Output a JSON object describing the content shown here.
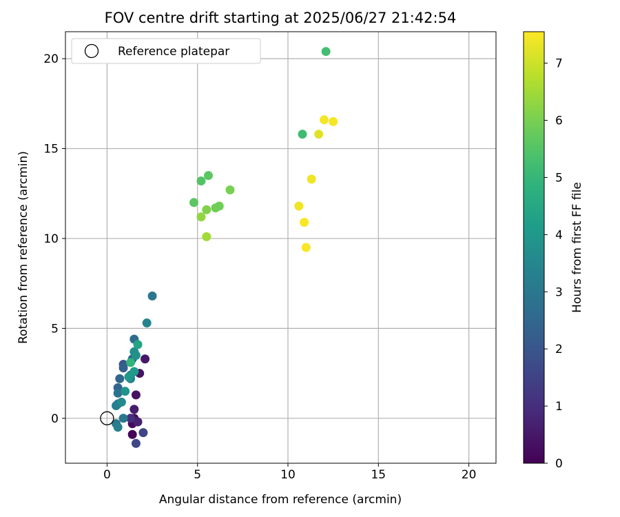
{
  "chart_data": {
    "type": "scatter",
    "title": "FOV centre drift starting at 2025/06/27 21:42:54",
    "xlabel": "Angular distance from reference (arcmin)",
    "ylabel": "Rotation from reference (arcmin)",
    "xlim": [
      -2.3,
      21.5
    ],
    "ylim": [
      -2.5,
      21.5
    ],
    "xticks": [
      0,
      5,
      10,
      15,
      20
    ],
    "yticks": [
      0,
      5,
      10,
      15,
      20
    ],
    "grid": true,
    "legend": {
      "placement": "upper-left",
      "entries": [
        "Reference platepar"
      ]
    },
    "reference": {
      "x": 0,
      "y": 0,
      "marker": "open-circle",
      "label": "Reference platepar"
    },
    "colorbar": {
      "label": "Hours from first FF file",
      "colormap": "viridis",
      "range": [
        0,
        7.55
      ],
      "ticks": [
        0,
        1,
        2,
        3,
        4,
        5,
        6,
        7
      ]
    },
    "series": [
      {
        "points": [
          {
            "x": 1.4,
            "y": -0.9,
            "hours": 0.1
          },
          {
            "x": 1.4,
            "y": -0.3,
            "hours": 0.2
          },
          {
            "x": 1.5,
            "y": 0.0,
            "hours": 0.3
          },
          {
            "x": 1.6,
            "y": 1.3,
            "hours": 0.35
          },
          {
            "x": 1.8,
            "y": 2.5,
            "hours": 0.4
          },
          {
            "x": 2.1,
            "y": 3.3,
            "hours": 0.5
          },
          {
            "x": 1.5,
            "y": 0.5,
            "hours": 0.6
          },
          {
            "x": 1.7,
            "y": -0.2,
            "hours": 0.7
          },
          {
            "x": 1.3,
            "y": 0.0,
            "hours": 1.0
          },
          {
            "x": 2.0,
            "y": -0.8,
            "hours": 1.5
          },
          {
            "x": 1.6,
            "y": -1.4,
            "hours": 1.6
          },
          {
            "x": 0.9,
            "y": 3.0,
            "hours": 2.0
          },
          {
            "x": 0.9,
            "y": 2.8,
            "hours": 2.3
          },
          {
            "x": 0.6,
            "y": 1.7,
            "hours": 2.4
          },
          {
            "x": 0.7,
            "y": 2.2,
            "hours": 2.5
          },
          {
            "x": 1.4,
            "y": 3.3,
            "hours": 2.5
          },
          {
            "x": 1.5,
            "y": 4.4,
            "hours": 2.6
          },
          {
            "x": 1.3,
            "y": 2.4,
            "hours": 2.6
          },
          {
            "x": 0.6,
            "y": 1.4,
            "hours": 2.8
          },
          {
            "x": 0.6,
            "y": 0.8,
            "hours": 2.9
          },
          {
            "x": 0.9,
            "y": 0.0,
            "hours": 3.0
          },
          {
            "x": 0.5,
            "y": -0.3,
            "hours": 3.0
          },
          {
            "x": 2.5,
            "y": 6.8,
            "hours": 3.0
          },
          {
            "x": 0.5,
            "y": 0.7,
            "hours": 3.2
          },
          {
            "x": 0.6,
            "y": -0.5,
            "hours": 3.3
          },
          {
            "x": 2.2,
            "y": 5.3,
            "hours": 3.4
          },
          {
            "x": 1.3,
            "y": 2.2,
            "hours": 3.4
          },
          {
            "x": 0.8,
            "y": 0.9,
            "hours": 3.6
          },
          {
            "x": 1.5,
            "y": 3.7,
            "hours": 3.7
          },
          {
            "x": 1.6,
            "y": 3.5,
            "hours": 3.8
          },
          {
            "x": 1.0,
            "y": 1.5,
            "hours": 3.9
          },
          {
            "x": 1.2,
            "y": 2.3,
            "hours": 4.0
          },
          {
            "x": 1.5,
            "y": 2.6,
            "hours": 4.1
          },
          {
            "x": 1.7,
            "y": 4.1,
            "hours": 4.4
          },
          {
            "x": 1.3,
            "y": 3.1,
            "hours": 4.9
          },
          {
            "x": 10.8,
            "y": 15.8,
            "hours": 5.2
          },
          {
            "x": 12.1,
            "y": 20.4,
            "hours": 5.25
          },
          {
            "x": 5.2,
            "y": 13.2,
            "hours": 5.5
          },
          {
            "x": 5.6,
            "y": 13.5,
            "hours": 5.6
          },
          {
            "x": 4.8,
            "y": 12.0,
            "hours": 5.6
          },
          {
            "x": 6.0,
            "y": 11.7,
            "hours": 5.9
          },
          {
            "x": 6.2,
            "y": 11.8,
            "hours": 5.9
          },
          {
            "x": 6.8,
            "y": 12.7,
            "hours": 6.0
          },
          {
            "x": 5.5,
            "y": 11.6,
            "hours": 6.1
          },
          {
            "x": 5.2,
            "y": 11.2,
            "hours": 6.3
          },
          {
            "x": 5.5,
            "y": 10.1,
            "hours": 6.5
          },
          {
            "x": 11.7,
            "y": 15.8,
            "hours": 7.2
          },
          {
            "x": 11.3,
            "y": 13.3,
            "hours": 7.4
          },
          {
            "x": 10.6,
            "y": 11.8,
            "hours": 7.4
          },
          {
            "x": 12.0,
            "y": 16.6,
            "hours": 7.45
          },
          {
            "x": 12.5,
            "y": 16.5,
            "hours": 7.45
          },
          {
            "x": 10.9,
            "y": 10.9,
            "hours": 7.5
          },
          {
            "x": 11.0,
            "y": 9.5,
            "hours": 7.5
          }
        ]
      }
    ]
  }
}
